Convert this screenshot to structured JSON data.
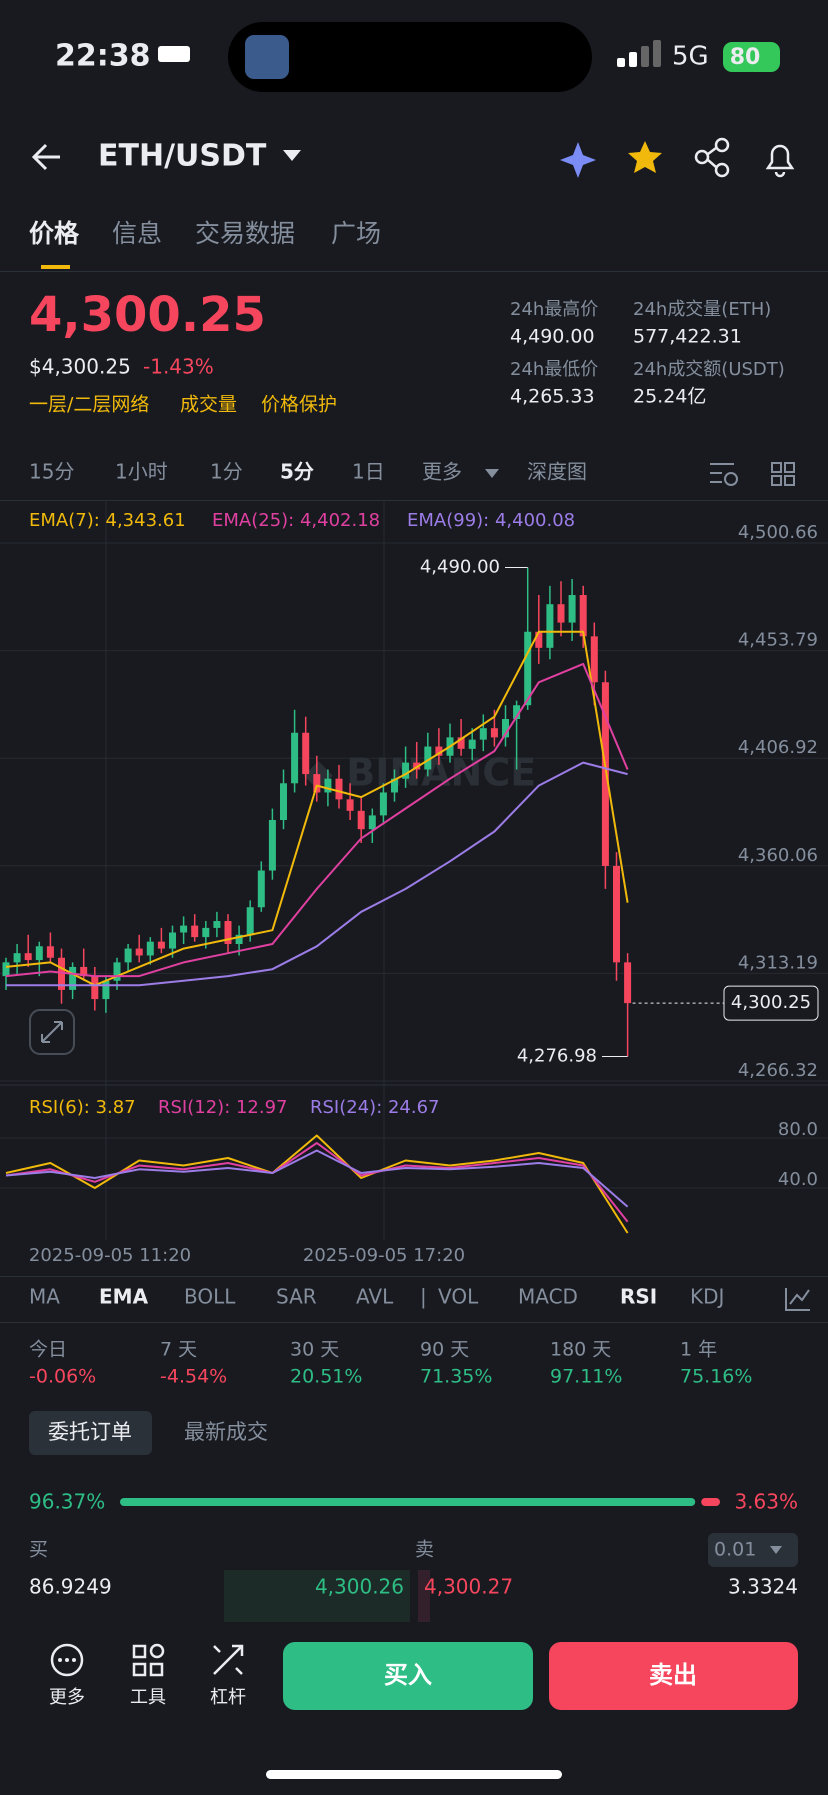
{
  "status": {
    "time": "22:38",
    "network": "5G",
    "battery": "80"
  },
  "header": {
    "pair": "ETH/USDT"
  },
  "tabs": [
    "价格",
    "信息",
    "交易数据",
    "广场"
  ],
  "price": {
    "last": "4,300.25",
    "usd": "$4,300.25",
    "change": "-1.43%",
    "tags": [
      "一层/二层网络",
      "成交量",
      "价格保护"
    ]
  },
  "stats": [
    {
      "label": "24h最高价",
      "value": "4,490.00"
    },
    {
      "label": "24h成交量(ETH)",
      "value": "577,422.31"
    },
    {
      "label": "24h最低价",
      "value": "4,265.33"
    },
    {
      "label": "24h成交额(USDT)",
      "value": "25.24亿"
    }
  ],
  "intervals": [
    "15分",
    "1小时",
    "1分",
    "5分",
    "1日",
    "更多",
    "深度图"
  ],
  "kline": {
    "type": "candlestick",
    "ylim": [
      4266.32,
      4500.66
    ],
    "yticks": [
      {
        "value": 4500.66,
        "label": "4,500.66"
      },
      {
        "value": 4453.79,
        "label": "4,453.79"
      },
      {
        "value": 4406.92,
        "label": "4,406.92"
      },
      {
        "value": 4360.06,
        "label": "4,360.06"
      },
      {
        "value": 4313.19,
        "label": "4,313.19"
      },
      {
        "value": 4266.32,
        "label": "4,266.32"
      }
    ],
    "x_labels": [
      "2025-09-05 11:20",
      "2025-09-05 17:20"
    ],
    "high_mark": {
      "value": 4490,
      "label": "4,490.00"
    },
    "low_mark": {
      "value": 4276.98,
      "label": "4,276.98"
    },
    "last_mark": {
      "value": 4300.25,
      "label": "4,300.25"
    },
    "up_color": "#2ebd85",
    "down_color": "#f6465d",
    "candles": [
      [
        4312,
        4320,
        4306,
        4318
      ],
      [
        4318,
        4326,
        4313,
        4322
      ],
      [
        4322,
        4330,
        4316,
        4319
      ],
      [
        4319,
        4327,
        4312,
        4325
      ],
      [
        4325,
        4331,
        4318,
        4320
      ],
      [
        4320,
        4324,
        4300,
        4306
      ],
      [
        4306,
        4318,
        4302,
        4316
      ],
      [
        4316,
        4324,
        4310,
        4312
      ],
      [
        4312,
        4316,
        4297,
        4302
      ],
      [
        4302,
        4312,
        4296,
        4310
      ],
      [
        4310,
        4320,
        4306,
        4318
      ],
      [
        4318,
        4326,
        4314,
        4324
      ],
      [
        4324,
        4330,
        4318,
        4321
      ],
      [
        4321,
        4329,
        4317,
        4327
      ],
      [
        4327,
        4333,
        4322,
        4324
      ],
      [
        4324,
        4334,
        4320,
        4331
      ],
      [
        4331,
        4338,
        4326,
        4334
      ],
      [
        4334,
        4339,
        4327,
        4329
      ],
      [
        4329,
        4336,
        4324,
        4333
      ],
      [
        4333,
        4340,
        4329,
        4336
      ],
      [
        4336,
        4339,
        4322,
        4326
      ],
      [
        4326,
        4334,
        4321,
        4330
      ],
      [
        4330,
        4345,
        4327,
        4342
      ],
      [
        4342,
        4362,
        4340,
        4358
      ],
      [
        4358,
        4385,
        4354,
        4380
      ],
      [
        4380,
        4402,
        4376,
        4396
      ],
      [
        4396,
        4428,
        4392,
        4418
      ],
      [
        4418,
        4425,
        4395,
        4400
      ],
      [
        4400,
        4408,
        4388,
        4392
      ],
      [
        4392,
        4402,
        4386,
        4398
      ],
      [
        4398,
        4404,
        4385,
        4389
      ],
      [
        4389,
        4396,
        4380,
        4384
      ],
      [
        4384,
        4390,
        4370,
        4376
      ],
      [
        4376,
        4385,
        4370,
        4382
      ],
      [
        4382,
        4396,
        4378,
        4392
      ],
      [
        4392,
        4402,
        4388,
        4398
      ],
      [
        4398,
        4412,
        4394,
        4405
      ],
      [
        4405,
        4414,
        4398,
        4402
      ],
      [
        4402,
        4418,
        4399,
        4412
      ],
      [
        4412,
        4420,
        4404,
        4408
      ],
      [
        4408,
        4422,
        4405,
        4416
      ],
      [
        4416,
        4424,
        4408,
        4411
      ],
      [
        4411,
        4420,
        4406,
        4415
      ],
      [
        4415,
        4426,
        4410,
        4420
      ],
      [
        4420,
        4428,
        4412,
        4416
      ],
      [
        4416,
        4430,
        4412,
        4424
      ],
      [
        4424,
        4432,
        4402,
        4430
      ],
      [
        4430,
        4490,
        4428,
        4462
      ],
      [
        4462,
        4478,
        4448,
        4455
      ],
      [
        4455,
        4482,
        4450,
        4474
      ],
      [
        4474,
        4484,
        4460,
        4466
      ],
      [
        4466,
        4485,
        4458,
        4478
      ],
      [
        4478,
        4482,
        4455,
        4460
      ],
      [
        4460,
        4466,
        4430,
        4440
      ],
      [
        4440,
        4445,
        4350,
        4360
      ],
      [
        4360,
        4366,
        4310,
        4318
      ],
      [
        4318,
        4322,
        4276.98,
        4300.25
      ]
    ],
    "series": [
      {
        "name": "EMA(7): 4,343.61",
        "color": "#f0b90b",
        "values": [
          4316,
          4318,
          4308,
          4316,
          4324,
          4328,
          4332,
          4395,
          4390,
          4400,
          4412,
          4425,
          4462,
          4462,
          4344
        ]
      },
      {
        "name": "EMA(25): 4,402.18",
        "color": "#e040a0",
        "values": [
          4312,
          4314,
          4312,
          4312,
          4318,
          4322,
          4326,
          4350,
          4372,
          4385,
          4398,
          4410,
          4440,
          4448,
          4402
        ]
      },
      {
        "name": "EMA(99): 4,400.08",
        "color": "#9c7ce6",
        "values": [
          4308,
          4308,
          4308,
          4308,
          4310,
          4312,
          4315,
          4325,
          4340,
          4350,
          4362,
          4375,
          4395,
          4405,
          4400
        ]
      }
    ]
  },
  "rsi": {
    "ylim": [
      0,
      100
    ],
    "yticks": [
      {
        "value": 80,
        "label": "80.0"
      },
      {
        "value": 40,
        "label": "40.0"
      }
    ],
    "series": [
      {
        "name": "RSI(6): 3.87",
        "color": "#f0b90b",
        "values": [
          52,
          60,
          40,
          62,
          58,
          64,
          52,
          82,
          48,
          62,
          58,
          62,
          68,
          60,
          4
        ]
      },
      {
        "name": "RSI(12): 12.97",
        "color": "#e040a0",
        "values": [
          50,
          55,
          45,
          58,
          55,
          60,
          52,
          76,
          50,
          58,
          56,
          60,
          64,
          58,
          13
        ]
      },
      {
        "name": "RSI(24): 24.67",
        "color": "#9c7ce6",
        "values": [
          50,
          53,
          48,
          55,
          53,
          56,
          52,
          70,
          52,
          56,
          55,
          57,
          60,
          56,
          25
        ]
      }
    ]
  },
  "indicators": [
    "MA",
    "EMA",
    "BOLL",
    "SAR",
    "AVL",
    "VOL",
    "MACD",
    "RSI",
    "KDJ"
  ],
  "performance": [
    {
      "period": "今日",
      "change": "-0.06%"
    },
    {
      "period": "7 天",
      "change": "-4.54%"
    },
    {
      "period": "30 天",
      "change": "20.51%"
    },
    {
      "period": "90 天",
      "change": "71.35%"
    },
    {
      "period": "180 天",
      "change": "97.11%"
    },
    {
      "period": "1 年",
      "change": "75.16%"
    }
  ],
  "orderbook": {
    "tabs": [
      "委托订单",
      "最新成交"
    ],
    "buy_ratio": {
      "value": 96.37,
      "label": "96.37%"
    },
    "sell_ratio": {
      "value": 3.63,
      "label": "3.63%"
    },
    "buy_header": "买",
    "sell_header": "卖",
    "precision": "0.01",
    "row": [
      "86.9249",
      "4,300.26",
      "4,300.27",
      "3.3324"
    ]
  },
  "bottom": {
    "actions": [
      "更多",
      "工具",
      "杠杆"
    ],
    "buy": "买入",
    "sell": "卖出"
  }
}
